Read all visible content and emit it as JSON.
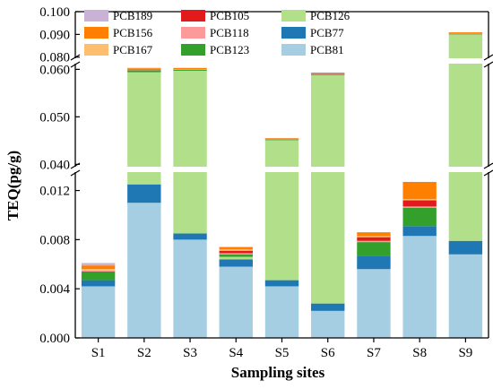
{
  "chart_data": {
    "type": "bar",
    "stacked": true,
    "broken_y_axis": true,
    "ylabel": "TEQ(pg/g)",
    "xlabel": "Sampling sites",
    "categories": [
      "S1",
      "S2",
      "S3",
      "S4",
      "S5",
      "S6",
      "S7",
      "S8",
      "S9"
    ],
    "y_segments": [
      {
        "range": [
          0.0,
          0.0135
        ],
        "ticks": [
          "0.000",
          "0.004",
          "0.008",
          "0.012"
        ],
        "tick_values": [
          0.0,
          0.004,
          0.008,
          0.012
        ]
      },
      {
        "range": [
          0.0395,
          0.0612
        ],
        "ticks": [
          "0.040",
          "0.050",
          "0.060"
        ],
        "tick_values": [
          0.04,
          0.05,
          0.06
        ]
      },
      {
        "range": [
          0.0795,
          0.1
        ],
        "ticks": [
          "0.080",
          "0.090",
          "0.100"
        ],
        "tick_values": [
          0.08,
          0.09,
          0.1
        ]
      }
    ],
    "legend_position": "top-left",
    "legend_columns": 3,
    "series": [
      {
        "name": "PCB81",
        "color": "#a6cee3",
        "values": [
          0.0042,
          0.011,
          0.008,
          0.0058,
          0.0042,
          0.0022,
          0.0056,
          0.0083,
          0.0068
        ]
      },
      {
        "name": "PCB77",
        "color": "#1f78b4",
        "values": [
          0.0005,
          0.0015,
          0.0005,
          0.0006,
          0.0005,
          0.0006,
          0.0011,
          0.0008,
          0.0011
        ]
      },
      {
        "name": "PCB126",
        "color": "#b2df8a",
        "values": [
          0.0,
          0.0469,
          0.0512,
          0.0002,
          0.0404,
          0.056,
          0.0,
          0.0,
          0.0821
        ]
      },
      {
        "name": "PCB123",
        "color": "#33a02c",
        "values": [
          0.0007,
          0.0004,
          0.0002,
          0.0002,
          0.0001,
          0.0002,
          0.0011,
          0.0015,
          0.0002
        ]
      },
      {
        "name": "PCB118",
        "color": "#fb9a99",
        "values": [
          0.0001,
          0.0001,
          0.0001,
          0.0001,
          0.0001,
          0.0001,
          0.0001,
          0.0001,
          0.0001
        ]
      },
      {
        "name": "PCB105",
        "color": "#e31a1c",
        "values": [
          0.0,
          0.0001,
          0.0,
          0.0002,
          0.0001,
          0.0001,
          0.0003,
          0.0005,
          0.0
        ]
      },
      {
        "name": "PCB167",
        "color": "#fdbf6f",
        "values": [
          0.0001,
          0.0001,
          0.0,
          0.0001,
          0.0,
          0.0,
          0.0001,
          0.0001,
          0.0
        ]
      },
      {
        "name": "PCB156",
        "color": "#ff7f00",
        "values": [
          0.0003,
          0.0002,
          0.0003,
          0.0002,
          0.0001,
          0.0001,
          0.0003,
          0.0014,
          0.0006
        ]
      },
      {
        "name": "PCB189",
        "color": "#cab2d6",
        "values": [
          0.0002,
          0.0,
          0.0,
          0.0,
          0.0,
          0.0,
          0.0,
          0.0,
          0.0
        ]
      }
    ],
    "legend": [
      "PCB189",
      "PCB105",
      "PCB126",
      "PCB156",
      "PCB118",
      "PCB77",
      "PCB167",
      "PCB123",
      "PCB81"
    ]
  }
}
